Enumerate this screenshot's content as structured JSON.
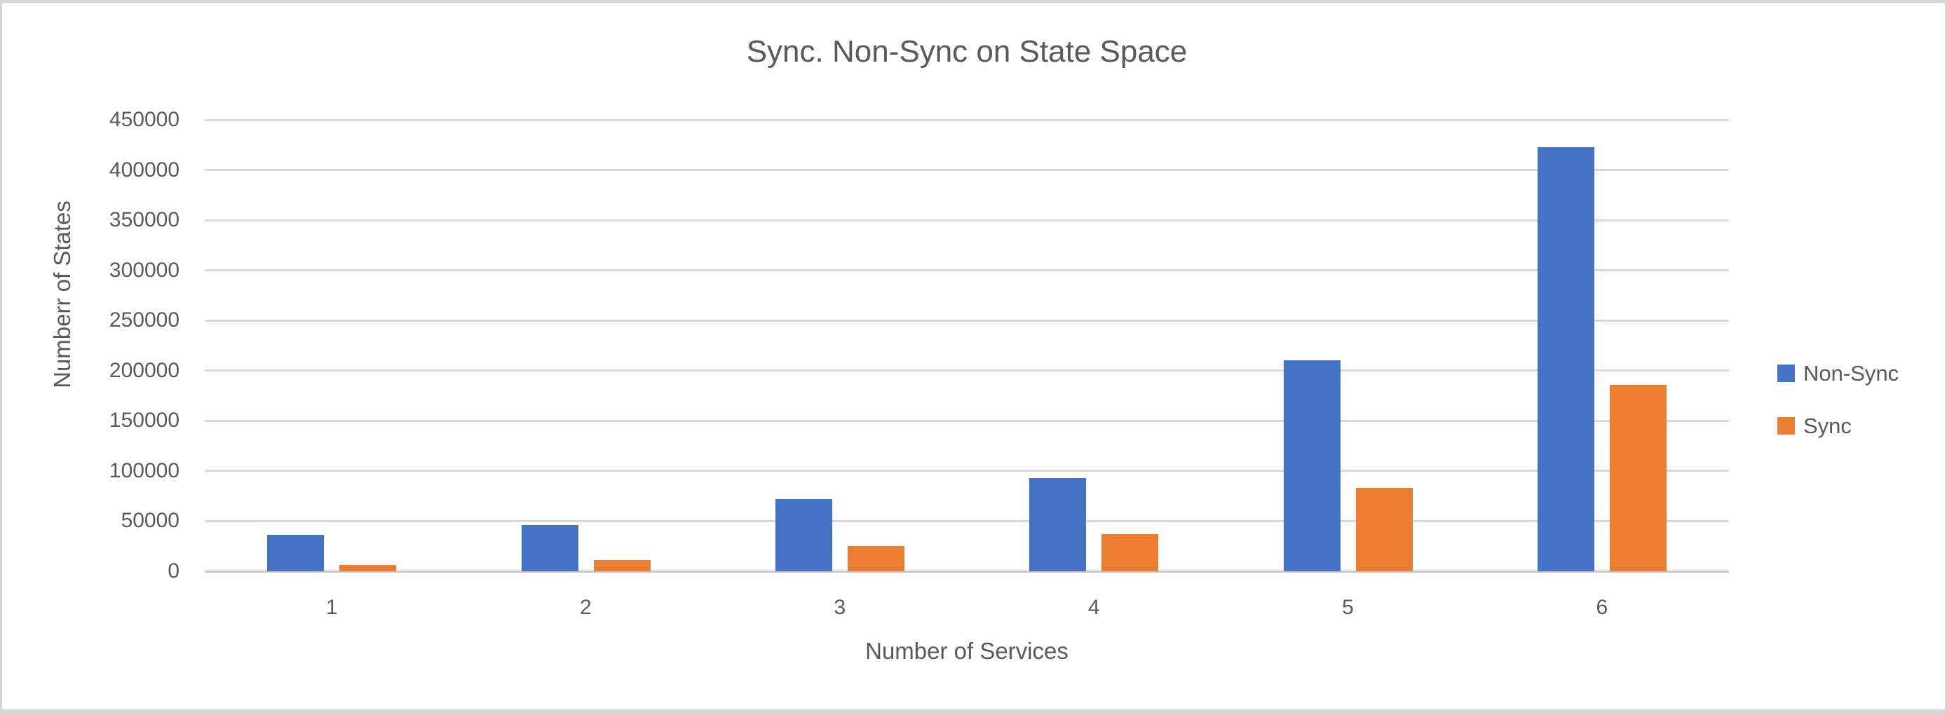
{
  "chart_data": {
    "type": "bar",
    "title": "Sync. Non-Sync on State Space",
    "xlabel": "Number of Services",
    "ylabel": "Numberr of States",
    "categories": [
      "1",
      "2",
      "3",
      "4",
      "5",
      "6"
    ],
    "series": [
      {
        "name": "Non-Sync",
        "color": "#4472C4",
        "values": [
          36000,
          46000,
          72000,
          93000,
          210000,
          423000
        ]
      },
      {
        "name": "Sync",
        "color": "#ED7D31",
        "values": [
          6000,
          11000,
          25000,
          37000,
          83000,
          186000
        ]
      }
    ],
    "ylim": [
      0,
      450000
    ],
    "ytick_step": 50000,
    "ytick_labels": [
      "0",
      "50000",
      "100000",
      "150000",
      "200000",
      "250000",
      "300000",
      "350000",
      "400000",
      "450000"
    ],
    "grid": true,
    "legend_position": "right",
    "legend_labels": [
      "Non-Sync",
      "Sync"
    ]
  },
  "colors": {
    "text": "#595959",
    "gridline": "#D9D9D9",
    "axis_line": "#C8C8C8",
    "background": "#FFFFFF",
    "frame_border": "#D6D6D6",
    "non_sync_blue": "#4472C4",
    "sync_orange": "#ED7D31"
  }
}
